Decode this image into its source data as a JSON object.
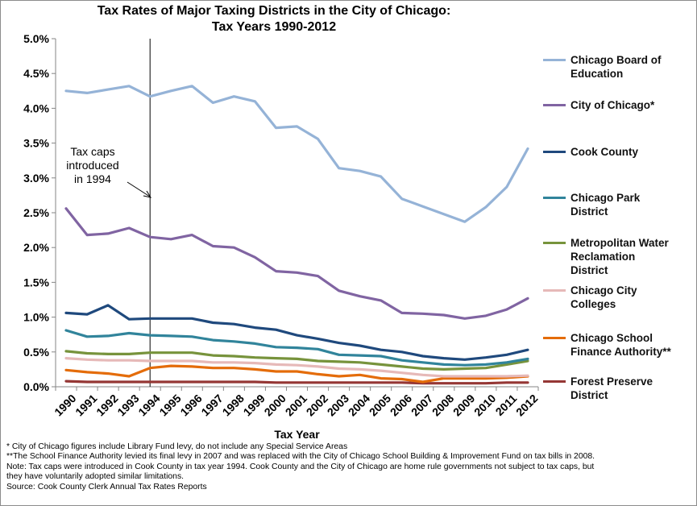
{
  "chart_data": {
    "type": "line",
    "title_lines": [
      "Tax Rates of Major Taxing Districts in the City of Chicago:",
      "Tax Years 1990-2012"
    ],
    "xlabel": "Tax Year",
    "ylabel": "",
    "ylim": [
      0,
      5.0
    ],
    "yticks": [
      "0.0%",
      "0.5%",
      "1.0%",
      "1.5%",
      "2.0%",
      "2.5%",
      "3.0%",
      "3.5%",
      "4.0%",
      "4.5%",
      "5.0%"
    ],
    "ytick_values": [
      0,
      0.5,
      1.0,
      1.5,
      2.0,
      2.5,
      3.0,
      3.5,
      4.0,
      4.5,
      5.0
    ],
    "x": [
      1990,
      1991,
      1992,
      1993,
      1994,
      1995,
      1996,
      1997,
      1998,
      1999,
      2000,
      2001,
      2002,
      2003,
      2004,
      2005,
      2006,
      2007,
      2008,
      2009,
      2010,
      2011,
      2012
    ],
    "xtick_labels": [
      "1990",
      "1991",
      "1992",
      "1993",
      "1994",
      "1995",
      "1996",
      "1997",
      "1998",
      "1999",
      "2000",
      "2001",
      "2002",
      "2003",
      "2004",
      "2005",
      "2006",
      "2007",
      "2008",
      "2009",
      "2010",
      "2011",
      "2012"
    ],
    "grid": false,
    "legend_position": "right",
    "annotation": {
      "lines": [
        "Tax caps",
        "introduced",
        "in 1994"
      ],
      "marker_x": 1994
    },
    "series": [
      {
        "name": "Chicago Board of Education",
        "name_lines": [
          "Chicago Board of",
          "Education"
        ],
        "color": "#95b3d7",
        "values": [
          4.25,
          4.22,
          4.27,
          4.32,
          4.17,
          4.25,
          4.32,
          4.08,
          4.17,
          4.1,
          3.72,
          3.74,
          3.56,
          3.14,
          3.1,
          3.02,
          2.7,
          2.59,
          2.48,
          2.37,
          2.58,
          2.87,
          3.42
        ]
      },
      {
        "name": "City of Chicago*",
        "name_lines": [
          "City of Chicago*"
        ],
        "color": "#8064a2",
        "values": [
          2.56,
          2.18,
          2.2,
          2.28,
          2.15,
          2.12,
          2.18,
          2.02,
          2.0,
          1.86,
          1.66,
          1.64,
          1.59,
          1.38,
          1.3,
          1.24,
          1.06,
          1.05,
          1.03,
          0.98,
          1.02,
          1.11,
          1.27
        ]
      },
      {
        "name": "Cook County",
        "name_lines": [
          "Cook County"
        ],
        "color": "#1f497d",
        "values": [
          1.06,
          1.04,
          1.17,
          0.97,
          0.98,
          0.98,
          0.98,
          0.92,
          0.9,
          0.85,
          0.82,
          0.74,
          0.69,
          0.63,
          0.59,
          0.53,
          0.5,
          0.44,
          0.41,
          0.39,
          0.42,
          0.46,
          0.53
        ]
      },
      {
        "name": "Chicago Park District",
        "name_lines": [
          "Chicago Park",
          "District"
        ],
        "color": "#31849b",
        "values": [
          0.81,
          0.72,
          0.73,
          0.77,
          0.74,
          0.73,
          0.72,
          0.67,
          0.65,
          0.62,
          0.57,
          0.56,
          0.54,
          0.46,
          0.45,
          0.44,
          0.38,
          0.35,
          0.32,
          0.31,
          0.32,
          0.35,
          0.4
        ]
      },
      {
        "name": "Metropolitan Water Reclamation District",
        "name_lines": [
          "Metropolitan Water",
          "Reclamation",
          "District"
        ],
        "color": "#77933c",
        "values": [
          0.51,
          0.48,
          0.47,
          0.47,
          0.49,
          0.49,
          0.49,
          0.45,
          0.44,
          0.42,
          0.41,
          0.4,
          0.37,
          0.36,
          0.35,
          0.32,
          0.29,
          0.26,
          0.25,
          0.26,
          0.27,
          0.32,
          0.37
        ]
      },
      {
        "name": "Chicago City Colleges",
        "name_lines": [
          "Chicago City",
          "Colleges"
        ],
        "color": "#e6b9b8",
        "values": [
          0.41,
          0.39,
          0.38,
          0.38,
          0.37,
          0.37,
          0.37,
          0.35,
          0.35,
          0.34,
          0.32,
          0.31,
          0.29,
          0.26,
          0.25,
          0.23,
          0.2,
          0.17,
          0.15,
          0.15,
          0.15,
          0.15,
          0.16
        ]
      },
      {
        "name": "Chicago School Finance Authority**",
        "name_lines": [
          "Chicago School",
          "Finance Authority**"
        ],
        "color": "#e46c0a",
        "values": [
          0.24,
          0.21,
          0.19,
          0.15,
          0.27,
          0.3,
          0.29,
          0.27,
          0.27,
          0.25,
          0.22,
          0.22,
          0.18,
          0.15,
          0.17,
          0.12,
          0.11,
          0.07,
          0.12,
          0.12,
          0.12,
          0.13,
          0.15
        ]
      },
      {
        "name": "Forest Preserve District",
        "name_lines": [
          "Forest Preserve",
          "District"
        ],
        "color": "#953735",
        "values": [
          0.08,
          0.07,
          0.07,
          0.07,
          0.07,
          0.07,
          0.07,
          0.07,
          0.07,
          0.07,
          0.06,
          0.06,
          0.06,
          0.06,
          0.06,
          0.06,
          0.06,
          0.05,
          0.05,
          0.05,
          0.05,
          0.06,
          0.06
        ]
      }
    ]
  },
  "footnotes": [
    "* City of Chicago figures include Library Fund levy, do not include  any Special Service Areas",
    "**The School Finance Authority levied its final levy in 2007 and was replaced with the City of Chicago School Building & Improvement Fund on tax bills in 2008.",
    "Note: Tax caps were introduced in Cook County in tax year 1994. Cook County and the City of Chicago are home rule governments not subject to tax caps, but",
    "they have voluntarily adopted similar limitations.",
    "Source: Cook County Clerk Annual Tax Rates Reports"
  ]
}
